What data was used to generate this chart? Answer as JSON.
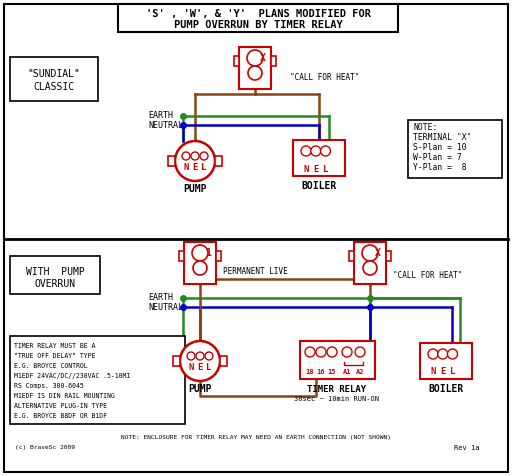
{
  "title_lines": [
    "'S' , 'W', & 'Y'  PLANS MODIFIED FOR",
    "PUMP OVERRUN BY TIMER RELAY"
  ],
  "bg_color": "#ffffff",
  "border_color": "#000000",
  "red": "#cc0000",
  "brown": "#8B4513",
  "green": "#228B22",
  "blue": "#0000cc",
  "text_color": "#000000",
  "sundial_label": [
    "\"SUNDIAL\"",
    "CLASSIC"
  ],
  "with_pump_label": [
    "WITH  PUMP",
    "OVERRUN"
  ],
  "note_lines": [
    "NOTE:",
    "TERMINAL \"X\"",
    "S-Plan = 10",
    "W-Plan = 7",
    "Y-Plan =  8"
  ],
  "timer_note_lines": [
    "TIMER RELAY MUST BE A",
    "\"TRUE OFF DELAY\" TYPE",
    "E.G. BROYCE CONTROL",
    "M1EDF 24VAC/DC//230VAC .5-10MI",
    "RS Comps. 300-6045",
    "M1EDF IS DIN RAIL MOUNTING",
    "ALTERNATIVE PLUG-IN TYPE",
    "E.G. BROYCE B8DF OR B1DF"
  ],
  "bottom_note": "NOTE: ENCLOSURE FOR TIMER RELAY MAY NEED AN EARTH CONNECTION (NOT SHOWN)",
  "rev_note": "Rev 1a",
  "copyright": "(c) BraveSc 2009"
}
